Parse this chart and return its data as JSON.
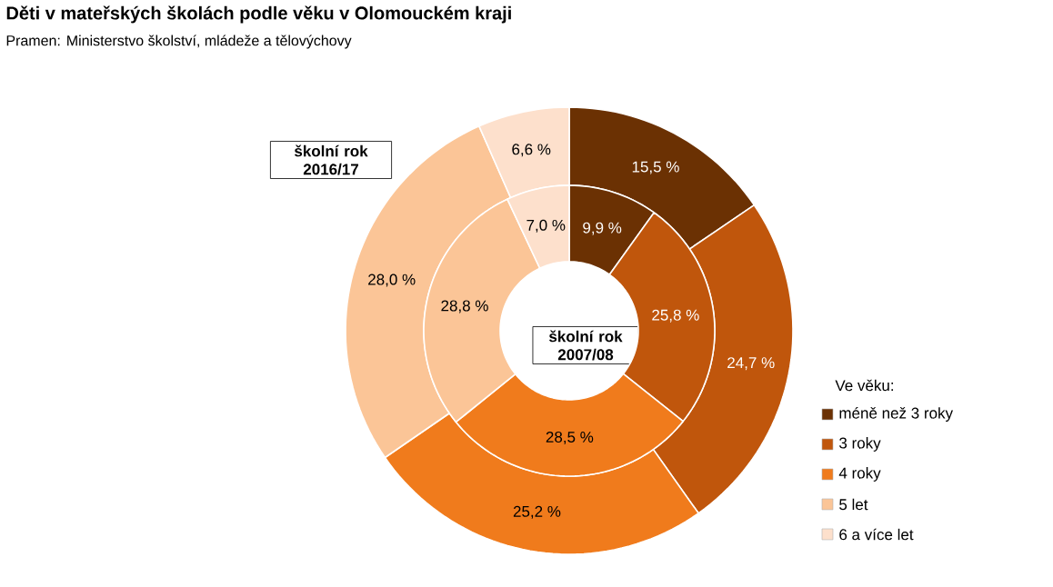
{
  "chart_data": {
    "type": "donut",
    "title": "Děti v mateřských školách podle věku v Olomouckém kraji",
    "subtitle": "Pramen: Ministerstvo školství, mládeže a tělovýchovy",
    "legend_title": "Ve věku:",
    "legend": "right",
    "categories": [
      "méně než 3 roky",
      "3 roky",
      "4 roky",
      "5 let",
      "6 a více let"
    ],
    "colors": [
      "#6b3103",
      "#c0560c",
      "#f07b1c",
      "#fbc597",
      "#fde0cc"
    ],
    "series": [
      {
        "name": "školní rok 2016/17",
        "values": [
          15.5,
          24.7,
          25.2,
          28.0,
          6.6
        ],
        "value_labels": [
          "15,5 %",
          "24,7 %",
          "25,2 %",
          "28,0 %",
          "6,6 %"
        ]
      },
      {
        "name": "školní rok 2007/08",
        "values": [
          9.9,
          25.8,
          28.5,
          28.8,
          7.0
        ],
        "value_labels": [
          "9,9 %",
          "25,8 %",
          "28,5 %",
          "28,8 %",
          "7,0 %"
        ]
      }
    ]
  }
}
